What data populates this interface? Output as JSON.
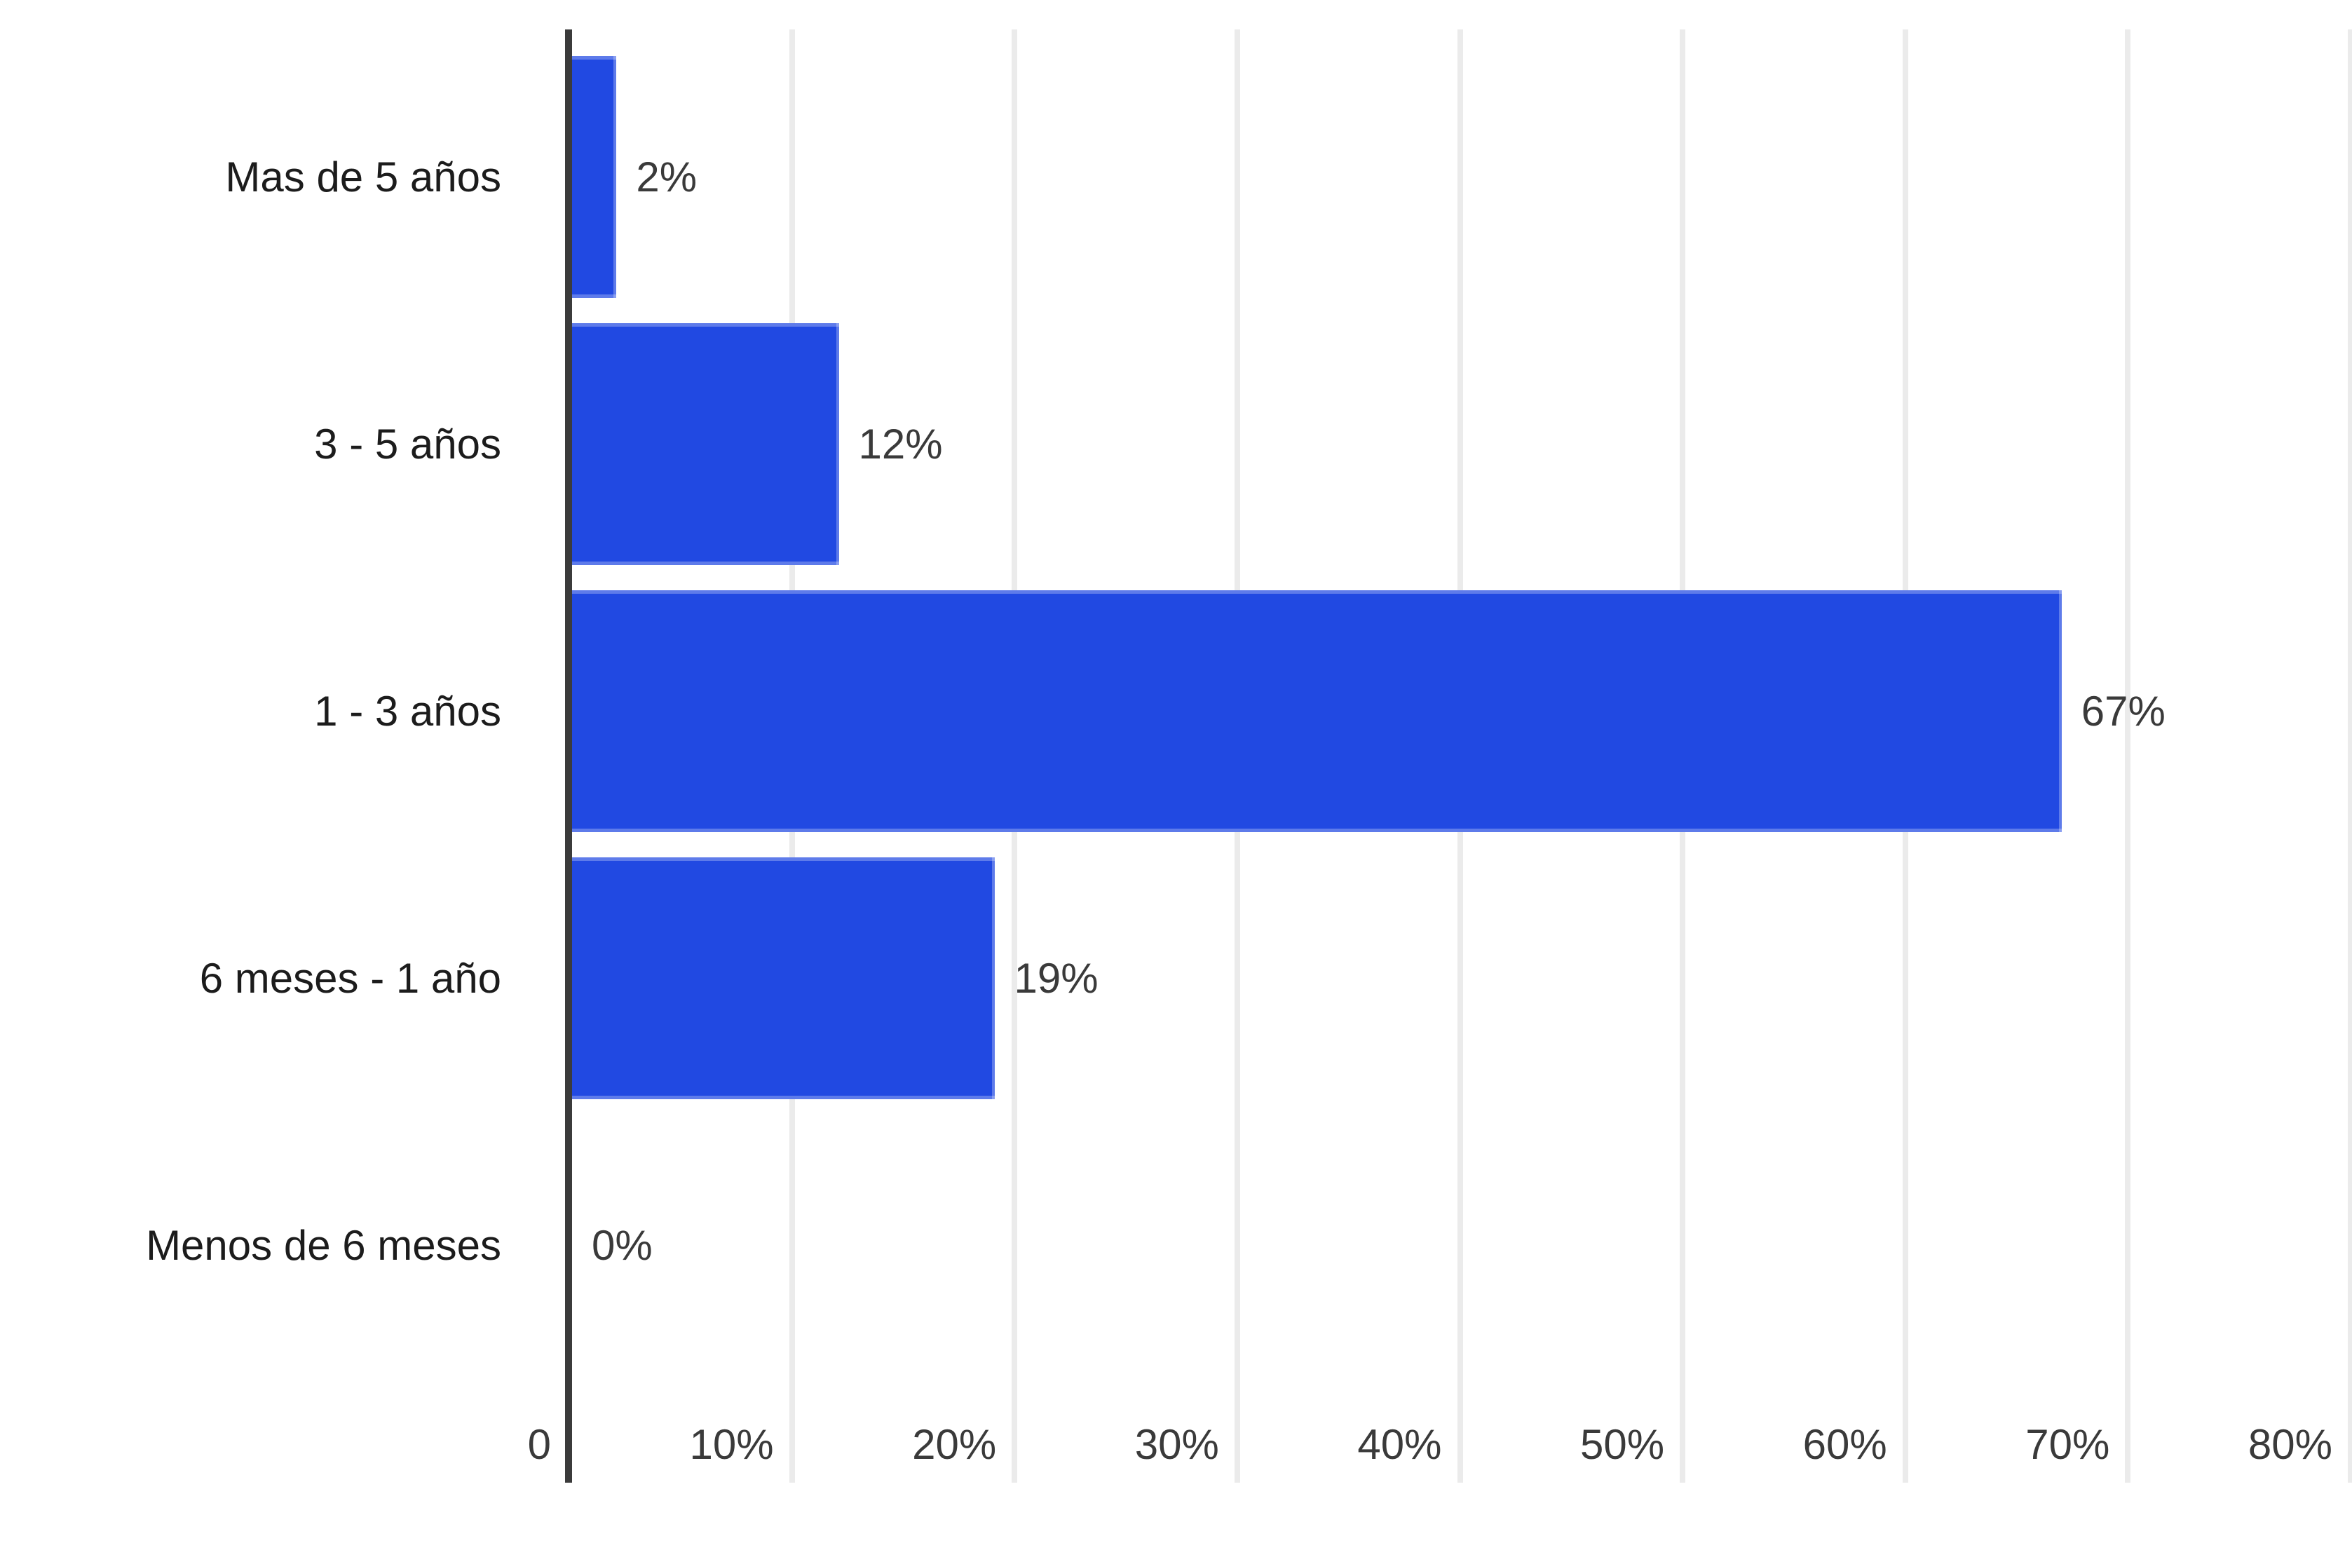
{
  "chart_data": {
    "type": "bar",
    "orientation": "horizontal",
    "title": "",
    "xlabel": "",
    "ylabel": "",
    "categories": [
      "Mas de 5 años",
      "3 - 5 años",
      "1 - 3 años",
      "6 meses - 1 año",
      "Menos de 6 meses"
    ],
    "values": [
      2,
      12,
      67,
      19,
      0
    ],
    "value_labels": [
      "2%",
      "12%",
      "67%",
      "19%",
      "0%"
    ],
    "xlim": [
      0,
      80
    ],
    "xtick_values": [
      0,
      10,
      20,
      30,
      40,
      50,
      60,
      70,
      80
    ],
    "xtick_labels": [
      "0",
      "10%",
      "20%",
      "30%",
      "40%",
      "50%",
      "60%",
      "70%",
      "80%"
    ],
    "grid": "vertical-gridlines",
    "legend": "none",
    "colors": {
      "bar": "#2149e2",
      "axis_line": "#3b3b3b",
      "gridline": "#ebebeb",
      "category_label": "#1c1c1c",
      "value_label": "#3a3a3a",
      "tick_label": "#3a3a3a",
      "background": "#ffffff"
    }
  }
}
